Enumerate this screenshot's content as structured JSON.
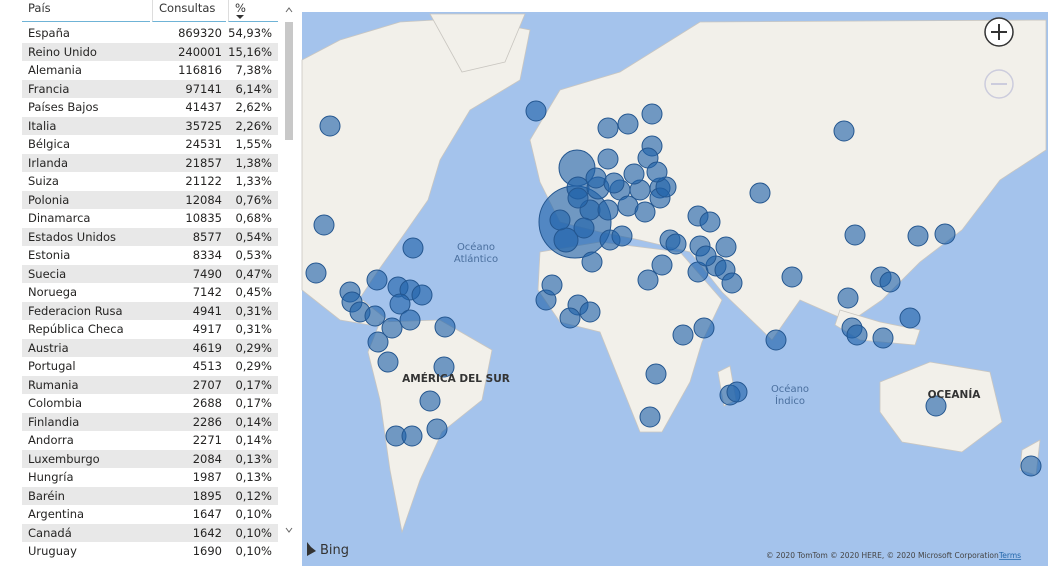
{
  "table": {
    "columns": [
      "País",
      "Consultas",
      "%"
    ],
    "rows": [
      [
        "España",
        869320,
        "54,93%"
      ],
      [
        "Reino Unido",
        240001,
        "15,16%"
      ],
      [
        "Alemania",
        116816,
        "7,38%"
      ],
      [
        "Francia",
        97141,
        "6,14%"
      ],
      [
        "Países Bajos",
        41437,
        "2,62%"
      ],
      [
        "Italia",
        35725,
        "2,26%"
      ],
      [
        "Bélgica",
        24531,
        "1,55%"
      ],
      [
        "Irlanda",
        21857,
        "1,38%"
      ],
      [
        "Suiza",
        21122,
        "1,33%"
      ],
      [
        "Polonia",
        12084,
        "0,76%"
      ],
      [
        "Dinamarca",
        10835,
        "0,68%"
      ],
      [
        "Estados Unidos",
        8577,
        "0,54%"
      ],
      [
        "Estonia",
        8334,
        "0,53%"
      ],
      [
        "Suecia",
        7490,
        "0,47%"
      ],
      [
        "Noruega",
        7142,
        "0,45%"
      ],
      [
        "Federacion Rusa",
        4941,
        "0,31%"
      ],
      [
        "República Checa",
        4917,
        "0,31%"
      ],
      [
        "Austria",
        4619,
        "0,29%"
      ],
      [
        "Portugal",
        4513,
        "0,29%"
      ],
      [
        "Rumania",
        2707,
        "0,17%"
      ],
      [
        "Colombia",
        2688,
        "0,17%"
      ],
      [
        "Finlandia",
        2286,
        "0,14%"
      ],
      [
        "Andorra",
        2271,
        "0,14%"
      ],
      [
        "Luxemburgo",
        2084,
        "0,13%"
      ],
      [
        "Hungría",
        1987,
        "0,13%"
      ],
      [
        "Baréin",
        1895,
        "0,12%"
      ],
      [
        "Argentina",
        1647,
        "0,10%"
      ],
      [
        "Canadá",
        1642,
        "0,10%"
      ],
      [
        "Uruguay",
        1690,
        "0,10%"
      ]
    ]
  },
  "map": {
    "atlantic": [
      "Océano",
      "Atlántico"
    ],
    "south_america": "AMÉRICA DEL SUR",
    "indian": [
      "Océano",
      "Índico"
    ],
    "oceania": "OCEANÍA",
    "brand": "Bing",
    "copyright": "© 2020 TomTom © 2020 HERE, © 2020 Microsoft Corporation",
    "terms": "Terms"
  }
}
